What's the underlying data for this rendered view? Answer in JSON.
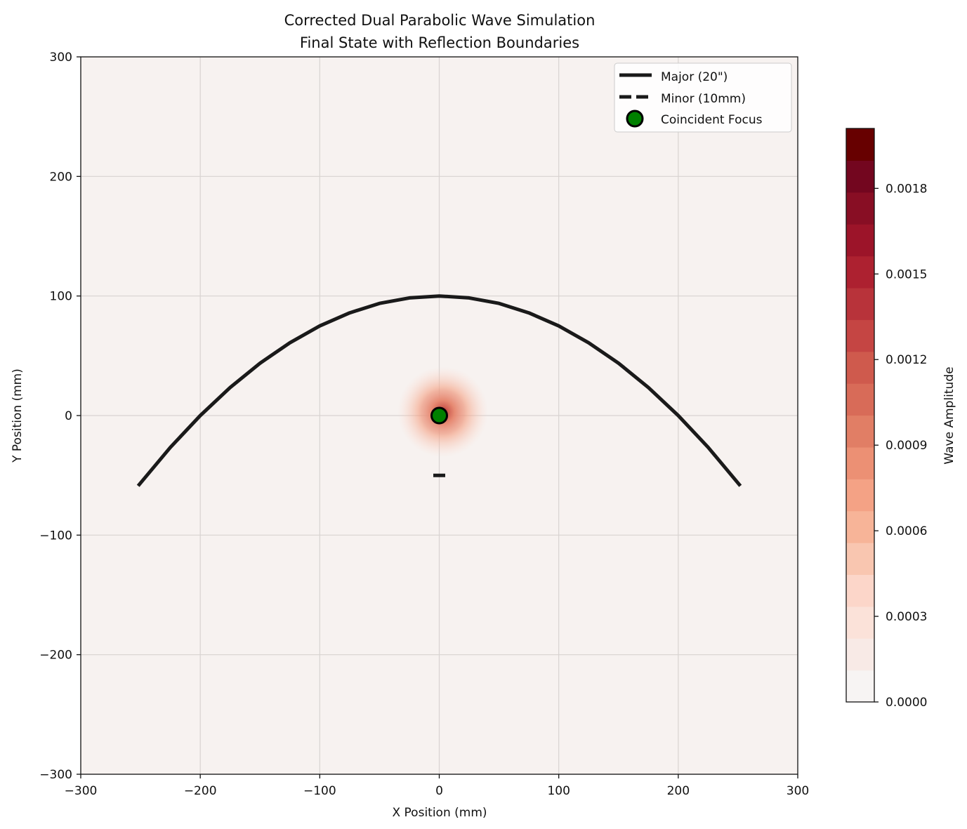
{
  "chart_data": {
    "type": "contour",
    "title": "Corrected Dual Parabolic Wave Simulation\nFinal State with Reflection Boundaries",
    "title_lines": [
      "Corrected Dual Parabolic Wave Simulation",
      "Final State with Reflection Boundaries"
    ],
    "xlabel": "X Position (mm)",
    "ylabel": "Y Position (mm)",
    "xlim": [
      -300,
      300
    ],
    "ylim": [
      -300,
      300
    ],
    "xticks": [
      -300,
      -200,
      -100,
      0,
      100,
      200,
      300
    ],
    "yticks": [
      -300,
      -200,
      -100,
      0,
      100,
      200,
      300
    ],
    "tick_labels_x": [
      "−300",
      "−200",
      "−100",
      "0",
      "100",
      "200",
      "300"
    ],
    "tick_labels_y": [
      "−300",
      "−200",
      "−100",
      "0",
      "100",
      "200",
      "300"
    ],
    "grid": true,
    "legend_position": "top-right",
    "series": [
      {
        "name": "Major (20\")",
        "style": "solid",
        "color": "#1a1a1a",
        "x": [
          -252,
          -225,
          -200,
          -175,
          -150,
          -125,
          -100,
          -75,
          -50,
          -25,
          0,
          25,
          50,
          75,
          100,
          125,
          150,
          175,
          200,
          225,
          252
        ],
        "y": [
          -58.8,
          -26.6,
          0,
          23.4,
          43.8,
          60.9,
          75,
          85.9,
          93.8,
          98.4,
          100,
          98.4,
          93.8,
          85.9,
          75,
          60.9,
          43.8,
          23.4,
          0,
          -26.6,
          -58.8
        ]
      },
      {
        "name": "Minor (10mm)",
        "style": "dashed",
        "color": "#1a1a1a",
        "x": [
          -5,
          -2.5,
          0,
          2.5,
          5
        ],
        "y": [
          -50,
          -50,
          -50,
          -50,
          -50
        ]
      }
    ],
    "points": [
      {
        "name": "Coincident Focus",
        "x": 0,
        "y": 0,
        "color": "#008000",
        "edge": "#000000"
      }
    ],
    "hotspot": {
      "x": 3,
      "y": 3,
      "radius": 20,
      "peak_amplitude": 0.002
    },
    "colorbar": {
      "label": "Wave Amplitude",
      "min": 0.0,
      "max": 0.00201,
      "ticks": [
        0.0,
        0.0003,
        0.0006,
        0.0009,
        0.0012,
        0.0015,
        0.0018
      ],
      "tick_labels": [
        "0.0000",
        "0.0003",
        "0.0006",
        "0.0009",
        "0.0012",
        "0.0015",
        "0.0018"
      ],
      "levels": [
        "#f7f4f3",
        "#f8eae6",
        "#fbe2d9",
        "#fcd6c9",
        "#f9c6b0",
        "#f7b498",
        "#f4a285",
        "#ec9074",
        "#e17e65",
        "#d86b58",
        "#cf5a4d",
        "#c54543",
        "#b8333a",
        "#ad2130",
        "#9c1429",
        "#880e24",
        "#73061f",
        "#670000"
      ],
      "background": "#f7f2f0"
    }
  }
}
